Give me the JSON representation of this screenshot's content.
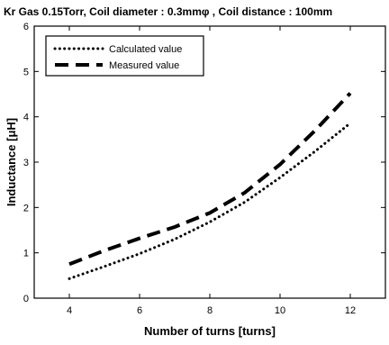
{
  "chart_data": {
    "type": "line",
    "title": "Kr Gas 0.15Torr, Coil diameter : 0.3mmφ   , Coil distance : 100mm",
    "xlabel": "Number of turns [turns]",
    "ylabel": "Inductance [μH]",
    "xlim": [
      3,
      13
    ],
    "ylim": [
      0,
      6
    ],
    "xticks": [
      4,
      6,
      8,
      10,
      12
    ],
    "yticks": [
      0,
      1,
      2,
      3,
      4,
      5,
      6
    ],
    "legend_position": "top-left",
    "grid": false,
    "series": [
      {
        "name": "Calculated value",
        "style": "dotted",
        "color": "#000000",
        "points": [
          {
            "x": 4,
            "y": 0.43
          },
          {
            "x": 5,
            "y": 0.7
          },
          {
            "x": 6,
            "y": 0.98
          },
          {
            "x": 7,
            "y": 1.3
          },
          {
            "x": 8,
            "y": 1.68
          },
          {
            "x": 9,
            "y": 2.12
          },
          {
            "x": 10,
            "y": 2.66
          },
          {
            "x": 11,
            "y": 3.24
          },
          {
            "x": 12,
            "y": 3.86
          }
        ]
      },
      {
        "name": "Measured value",
        "style": "dashed",
        "color": "#000000",
        "points": [
          {
            "x": 4,
            "y": 0.75
          },
          {
            "x": 5,
            "y": 1.05
          },
          {
            "x": 6,
            "y": 1.32
          },
          {
            "x": 7,
            "y": 1.57
          },
          {
            "x": 8,
            "y": 1.88
          },
          {
            "x": 9,
            "y": 2.33
          },
          {
            "x": 10,
            "y": 2.95
          },
          {
            "x": 11,
            "y": 3.7
          },
          {
            "x": 12,
            "y": 4.52
          }
        ]
      }
    ]
  }
}
